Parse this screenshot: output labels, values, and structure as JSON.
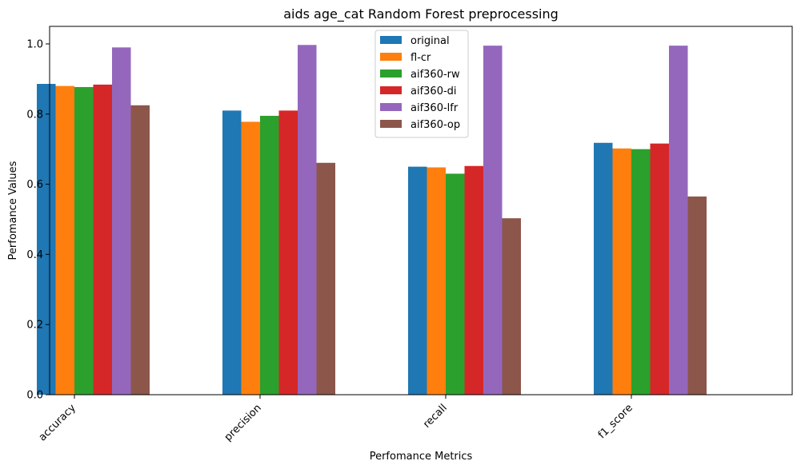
{
  "chart_data": {
    "type": "bar",
    "title": "aids age_cat Random Forest preprocessing",
    "xlabel": "Perfomance Metrics",
    "ylabel": "Perfomance Values",
    "categories": [
      "accuracy",
      "precision",
      "recall",
      "f1_score"
    ],
    "ylim": [
      0,
      1.05
    ],
    "yticks": [
      "0.0",
      "0.2",
      "0.4",
      "0.6",
      "0.8",
      "1.0"
    ],
    "grid": false,
    "legend_position": "top-center",
    "series": [
      {
        "name": "original",
        "color": "#1f77b4",
        "values": [
          0.886,
          0.81,
          0.65,
          0.718
        ]
      },
      {
        "name": "fl-cr",
        "color": "#ff7f0e",
        "values": [
          0.88,
          0.778,
          0.648,
          0.702
        ]
      },
      {
        "name": "aif360-rw",
        "color": "#2ca02c",
        "values": [
          0.877,
          0.795,
          0.63,
          0.7
        ]
      },
      {
        "name": "aif360-di",
        "color": "#d62728",
        "values": [
          0.884,
          0.81,
          0.652,
          0.716
        ]
      },
      {
        "name": "aif360-lfr",
        "color": "#9467bd",
        "values": [
          0.99,
          0.997,
          0.995,
          0.995
        ]
      },
      {
        "name": "aif360-op",
        "color": "#8c564b",
        "values": [
          0.825,
          0.661,
          0.503,
          0.565
        ]
      }
    ]
  }
}
